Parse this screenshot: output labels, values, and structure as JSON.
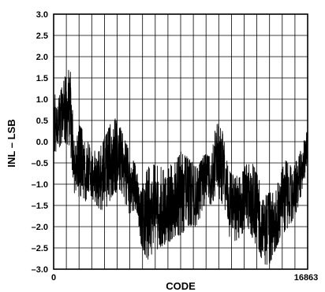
{
  "chart_data": {
    "type": "line",
    "title": "",
    "xlabel": "CODE",
    "ylabel": "INL – LSB",
    "xlim": [
      0,
      16863
    ],
    "ylim": [
      -3.0,
      3.0
    ],
    "grid": true,
    "x_tick_labels": [
      "0",
      "16863"
    ],
    "y_tick_values": [
      3.0,
      2.5,
      2.0,
      1.5,
      1.0,
      0.5,
      0.0,
      -0.5,
      -1.0,
      -1.5,
      -2.0,
      -2.5,
      -3.0
    ],
    "y_tick_labels": [
      "3.0",
      "2.5",
      "2.0",
      "1.5",
      "1.0",
      "0.5",
      "0.0",
      "–0.5",
      "–1.0",
      "–1.5",
      "–2.0",
      "–2.5",
      "–3.0"
    ],
    "series": [
      {
        "envelope_x": [
          0,
          300,
          700,
          1100,
          1400,
          1700,
          2100,
          2500,
          3000,
          3500,
          4000,
          4500,
          5000,
          5500,
          5800,
          6200,
          6600,
          7000,
          7500,
          8000,
          8500,
          9000,
          9500,
          10000,
          10500,
          10800,
          11200,
          11600,
          12000,
          12400,
          12800,
          13200,
          13600,
          14000,
          14300,
          14700,
          15000,
          15400,
          15800,
          16200,
          16600,
          16863
        ],
        "envelope_min": [
          -0.3,
          -0.2,
          0.0,
          -0.2,
          -1.3,
          -1.3,
          -1.4,
          -1.3,
          -1.6,
          -1.6,
          -1.2,
          -1.2,
          -1.7,
          -1.6,
          -2.4,
          -2.8,
          -2.7,
          -2.5,
          -2.4,
          -2.3,
          -2.2,
          -2.0,
          -2.0,
          -1.5,
          -1.5,
          -1.2,
          -1.5,
          -2.2,
          -2.4,
          -2.3,
          -2.0,
          -2.3,
          -2.6,
          -2.9,
          -2.9,
          -2.6,
          -2.3,
          -2.1,
          -1.9,
          -1.6,
          -1.0,
          -0.6
        ],
        "envelope_max": [
          1.2,
          1.0,
          1.5,
          1.8,
          -0.2,
          0.4,
          0.2,
          -0.2,
          -0.2,
          0.2,
          0.6,
          0.3,
          -0.2,
          -0.6,
          -1.2,
          -0.6,
          -0.5,
          -0.6,
          -0.6,
          -0.5,
          -0.2,
          -0.4,
          -0.6,
          -0.3,
          -0.3,
          0.5,
          0.3,
          -0.6,
          -0.8,
          -0.8,
          -0.5,
          -0.5,
          -0.8,
          -1.2,
          -1.2,
          -1.2,
          -0.8,
          -0.4,
          -0.6,
          -0.4,
          0.0,
          0.3
        ]
      }
    ]
  }
}
